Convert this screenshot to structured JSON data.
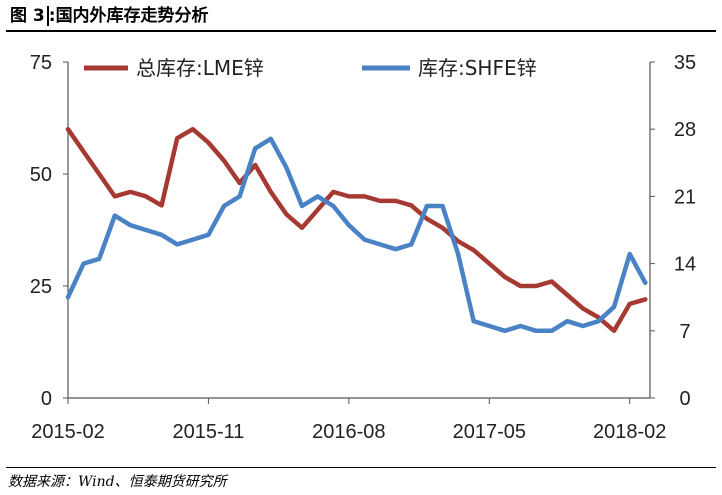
{
  "title": {
    "num": "图 3",
    "sep": ":",
    "text": "国内外库存走势分析"
  },
  "source": "数据来源：Wind、恒泰期货研究所",
  "colors": {
    "lme": "#a63a32",
    "shfe": "#4a82c6"
  },
  "chart_data": {
    "type": "line",
    "x_tick_labels": [
      "2015-02",
      "2015-11",
      "2016-08",
      "2017-05",
      "2018-02"
    ],
    "x": [
      "2015-02",
      "2015-03",
      "2015-04",
      "2015-05",
      "2015-06",
      "2015-07",
      "2015-08",
      "2015-09",
      "2015-10",
      "2015-11",
      "2015-12",
      "2016-01",
      "2016-02",
      "2016-03",
      "2016-04",
      "2016-05",
      "2016-06",
      "2016-07",
      "2016-08",
      "2016-09",
      "2016-10",
      "2016-11",
      "2016-12",
      "2017-01",
      "2017-02",
      "2017-03",
      "2017-04",
      "2017-05",
      "2017-06",
      "2017-07",
      "2017-08",
      "2017-09",
      "2017-10",
      "2017-11",
      "2017-12",
      "2018-01",
      "2018-02",
      "2018-03"
    ],
    "y_left": {
      "ticks": [
        "0",
        "25",
        "50",
        "75"
      ],
      "ylim": [
        0,
        75
      ]
    },
    "y_right": {
      "ticks": [
        "0",
        "7",
        "14",
        "21",
        "28",
        "35"
      ],
      "ylim": [
        0,
        35
      ]
    },
    "series": [
      {
        "name": "总库存:LME锌",
        "axis": "left",
        "values": [
          60,
          55,
          50,
          45,
          46,
          45,
          43,
          58,
          60,
          57,
          53,
          48,
          52,
          46,
          41,
          38,
          42,
          46,
          45,
          45,
          44,
          44,
          43,
          40,
          38,
          35,
          33,
          30,
          27,
          25,
          25,
          26,
          23,
          20,
          18,
          15,
          21,
          22
        ]
      },
      {
        "name": "库存:SHFE锌",
        "axis": "right",
        "values": [
          10.5,
          14,
          14.5,
          19,
          18,
          17.5,
          17,
          16,
          16.5,
          17,
          20,
          21,
          26,
          27,
          24,
          20,
          21,
          20,
          18,
          16.5,
          16,
          15.5,
          16,
          20,
          20,
          15,
          8,
          7.5,
          7,
          7.5,
          7,
          7,
          8,
          7.5,
          8,
          9.5,
          15,
          12
        ]
      }
    ]
  }
}
